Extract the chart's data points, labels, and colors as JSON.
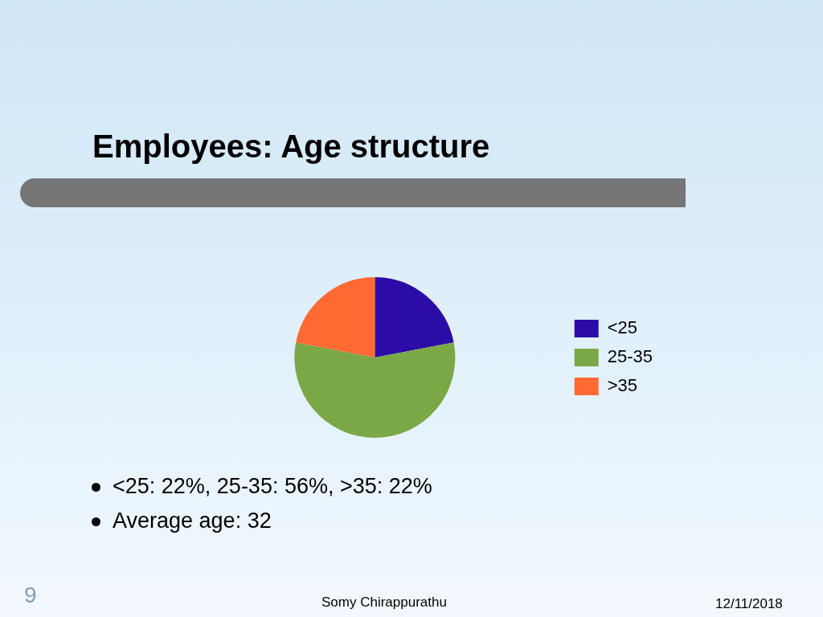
{
  "chart_data": {
    "type": "pie",
    "title": "Employees: Age structure",
    "categories": [
      "<25",
      "25-35",
      ">35"
    ],
    "values": [
      22,
      56,
      22
    ],
    "colors": [
      "#2b0ca6",
      "#7aa846",
      "#ff6a33"
    ],
    "legend": "right",
    "annotations": [
      "<25: 22%, 25-35: 56%,  >35: 22%",
      "Average age: 32",
      "Somy Chirappurathu",
      "12/11/2018",
      "9"
    ]
  }
}
